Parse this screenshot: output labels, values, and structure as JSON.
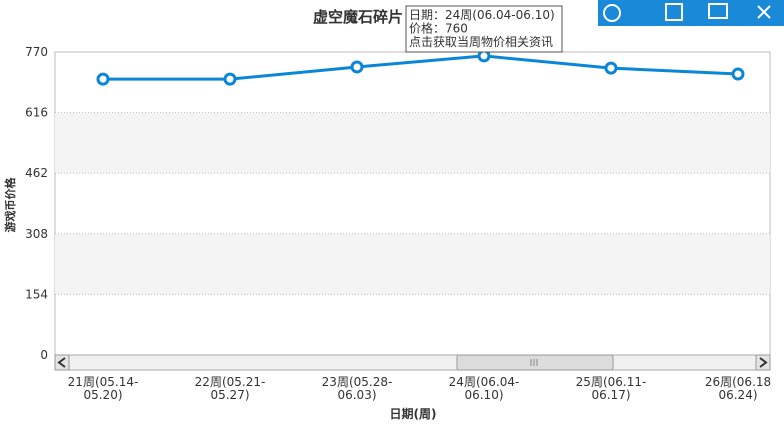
{
  "chart_data": {
    "type": "line",
    "title": "虚空魔石碎片",
    "y_label": "游戏币价格",
    "x_label": "日期(周)",
    "categories": [
      [
        "21周(05.14-",
        "05.20)"
      ],
      [
        "22周(05.21-",
        "05.27)"
      ],
      [
        "23周(05.28-",
        "06.03)"
      ],
      [
        "24周(06.04-",
        "06.10)"
      ],
      [
        "25周(06.11-",
        "06.17)"
      ],
      [
        "26周(06.18",
        "06.24)"
      ]
    ],
    "series": [
      {
        "name": "价格",
        "color": "#0a86d8",
        "values": [
          701,
          701,
          732,
          760,
          729,
          714
        ]
      }
    ],
    "ylim": [
      0,
      770
    ],
    "yticks": [
      0,
      154,
      308,
      462,
      616,
      770
    ],
    "grid": true,
    "tooltip": [
      "日期：24周(06.04-06.10)",
      "价格：760",
      "点击获取当周物价相关资讯"
    ]
  }
}
